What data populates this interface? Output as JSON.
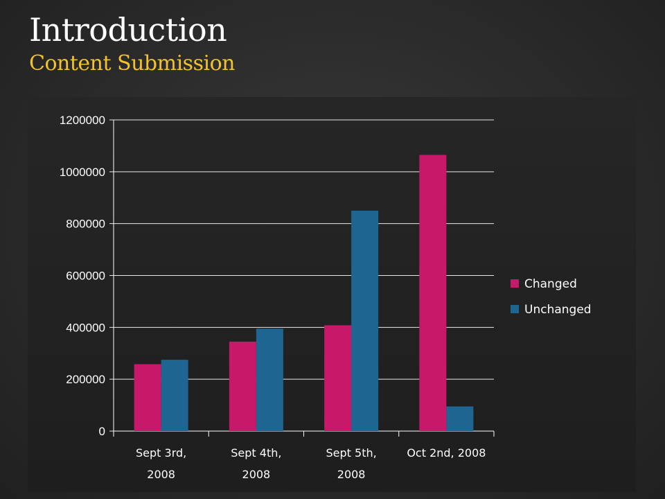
{
  "slide": {
    "title": "Introduction",
    "subtitle": "Content Submission"
  },
  "colors": {
    "changed": "#c8186a",
    "unchanged": "#1f6592",
    "title": "#ffffff",
    "subtitle": "#f2c12e"
  },
  "chart_data": {
    "type": "bar",
    "categories": [
      [
        "Sept 3rd,",
        "2008"
      ],
      [
        "Sept 4th,",
        "2008"
      ],
      [
        "Sept 5th,",
        "2008"
      ],
      [
        "Oct 2nd, 2008"
      ]
    ],
    "series": [
      {
        "name": "Changed",
        "values": [
          258000,
          345000,
          408000,
          1065000
        ]
      },
      {
        "name": "Unchanged",
        "values": [
          275000,
          395000,
          850000,
          95000
        ]
      }
    ],
    "ylim": [
      0,
      1200000
    ],
    "yticks": [
      0,
      200000,
      400000,
      600000,
      800000,
      1000000,
      1200000
    ],
    "grid": true,
    "legend": "right"
  }
}
